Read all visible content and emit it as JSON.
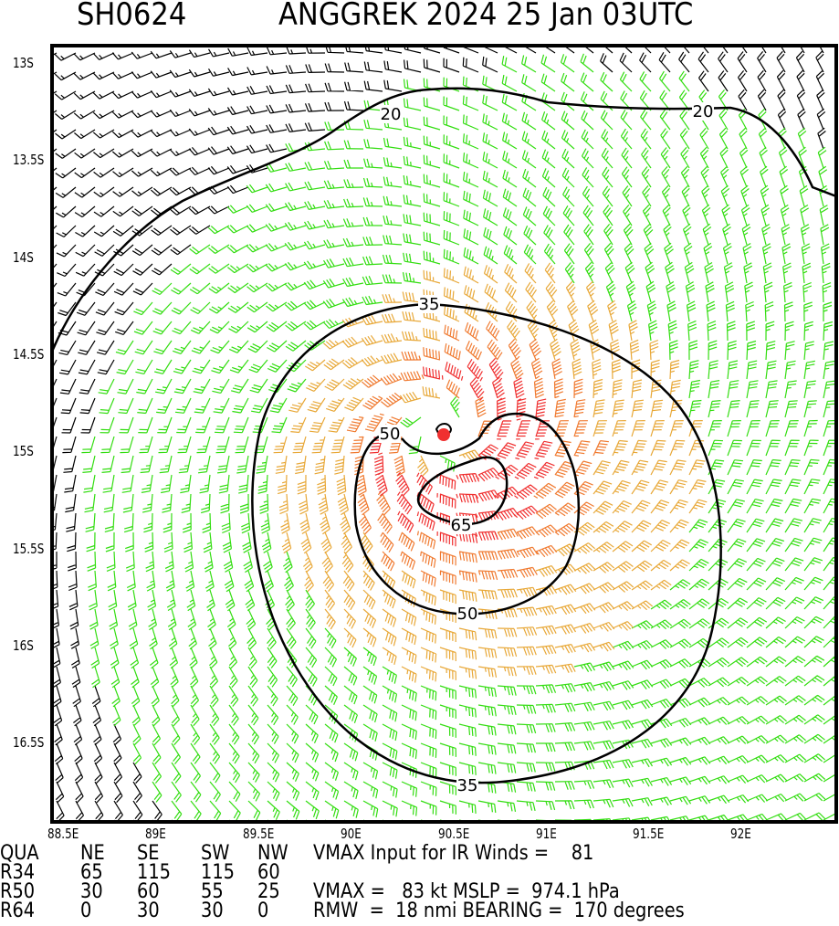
{
  "header": {
    "storm_id": "SH0624",
    "title": "ANGGREK 2024 25 Jan 03UTC"
  },
  "axes": {
    "lat_ticks": [
      "13S",
      "13.5S",
      "14S",
      "14.5S",
      "15S",
      "15.5S",
      "16S",
      "16.5S"
    ],
    "lon_ticks": [
      "88.5E",
      "89E",
      "89.5E",
      "90E",
      "90.5E",
      "91E",
      "91.5E",
      "92E"
    ]
  },
  "contours": {
    "labels": [
      "20",
      "20",
      "35",
      "35",
      "50",
      "50",
      "65"
    ],
    "levels_kt": [
      20,
      35,
      50,
      65
    ]
  },
  "colors": {
    "below_20": "#000000",
    "c20_35": "#33dd11",
    "c35_50": "#e8a838",
    "c50_65": "#f07a30",
    "above_65": "#f03030",
    "center": "#f03030"
  },
  "table": {
    "header": [
      "QUA",
      "NE",
      "SE",
      "SW",
      "NW"
    ],
    "rows": [
      [
        "R34",
        "65",
        "115",
        "115",
        "60"
      ],
      [
        "R50",
        "30",
        "60",
        "55",
        "25"
      ],
      [
        "R64",
        "0",
        "30",
        "30",
        "0"
      ]
    ]
  },
  "info": {
    "line1": "VMAX Input for IR Winds =    81",
    "line2": "VMAX =   83 kt MSLP =  974.1 hPa",
    "line3": "RMW  =  18 nmi BEARING =  170 degrees"
  }
}
